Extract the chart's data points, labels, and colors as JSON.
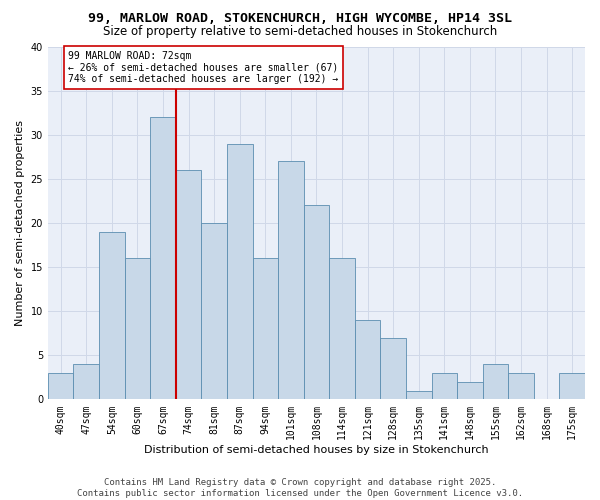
{
  "title1": "99, MARLOW ROAD, STOKENCHURCH, HIGH WYCOMBE, HP14 3SL",
  "title2": "Size of property relative to semi-detached houses in Stokenchurch",
  "xlabel": "Distribution of semi-detached houses by size in Stokenchurch",
  "ylabel": "Number of semi-detached properties",
  "categories": [
    "40sqm",
    "47sqm",
    "54sqm",
    "60sqm",
    "67sqm",
    "74sqm",
    "81sqm",
    "87sqm",
    "94sqm",
    "101sqm",
    "108sqm",
    "114sqm",
    "121sqm",
    "128sqm",
    "135sqm",
    "141sqm",
    "148sqm",
    "155sqm",
    "162sqm",
    "168sqm",
    "175sqm"
  ],
  "values": [
    3,
    4,
    19,
    16,
    32,
    26,
    20,
    29,
    16,
    27,
    22,
    16,
    9,
    7,
    1,
    3,
    2,
    4,
    3,
    0,
    3
  ],
  "bar_color": "#c8d8e8",
  "bar_edge_color": "#5b8db0",
  "vline_x": 5.5,
  "vline_color": "#cc0000",
  "annotation_title": "99 MARLOW ROAD: 72sqm",
  "annotation_line1": "← 26% of semi-detached houses are smaller (67)",
  "annotation_line2": "74% of semi-detached houses are larger (192) →",
  "annotation_box_color": "#ffffff",
  "annotation_box_edge": "#cc0000",
  "ylim": [
    0,
    40
  ],
  "yticks": [
    0,
    5,
    10,
    15,
    20,
    25,
    30,
    35,
    40
  ],
  "grid_color": "#d0d8e8",
  "bg_color": "#eaeff8",
  "footer": "Contains HM Land Registry data © Crown copyright and database right 2025.\nContains public sector information licensed under the Open Government Licence v3.0.",
  "title_fontsize": 9.5,
  "subtitle_fontsize": 8.5,
  "axis_label_fontsize": 8,
  "tick_fontsize": 7,
  "annotation_fontsize": 7,
  "footer_fontsize": 6.5
}
